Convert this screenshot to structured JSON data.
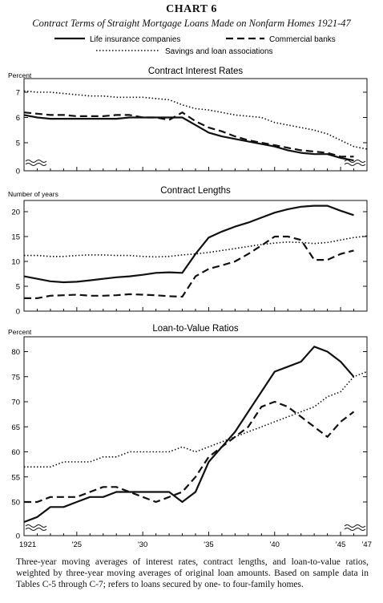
{
  "page": {
    "title": "CHART 6",
    "subtitle": "Contract Terms of Straight Mortgage Loans Made on Nonfarm Homes 1921-47",
    "caption": "Three-year moving averages of interest rates, contract lengths, and loan-to-value ratios, weighted by three-year moving averages of original loan amounts. Based on sample data in Tables C-5 through C-7; refers to loans secured by one- to four-family homes."
  },
  "legend": [
    {
      "label": "Life insurance companies",
      "style": "solid"
    },
    {
      "label": "Commercial banks",
      "style": "dashed"
    },
    {
      "label": "Savings and loan associations",
      "style": "dotted"
    }
  ],
  "chart_data": [
    {
      "type": "line",
      "title": "Contract Interest Rates",
      "ylabel": "Percent",
      "ylim": [
        0,
        7.5
      ],
      "yticks": [
        "0",
        "5",
        "6",
        "7"
      ],
      "xlim": [
        1921,
        1947
      ],
      "series": [
        {
          "name": "Life insurance companies",
          "style": "solid",
          "x": [
            1921,
            1922,
            1923,
            1924,
            1925,
            1926,
            1927,
            1928,
            1929,
            1930,
            1931,
            1932,
            1933,
            1934,
            1935,
            1936,
            1937,
            1938,
            1939,
            1940,
            1941,
            1942,
            1943,
            1944,
            1945,
            1946
          ],
          "values": [
            6.1,
            6.0,
            5.95,
            5.95,
            5.95,
            5.95,
            5.95,
            5.95,
            6.0,
            6.0,
            6.0,
            6.0,
            6.0,
            5.7,
            5.4,
            5.25,
            5.15,
            5.05,
            4.95,
            4.85,
            4.7,
            4.6,
            4.55,
            4.55,
            4.4,
            4.3
          ]
        },
        {
          "name": "Commercial banks",
          "style": "dashed",
          "x": [
            1921,
            1922,
            1923,
            1924,
            1925,
            1926,
            1927,
            1928,
            1929,
            1930,
            1931,
            1932,
            1933,
            1934,
            1935,
            1936,
            1937,
            1938,
            1939,
            1940,
            1941,
            1942,
            1943,
            1944,
            1945,
            1946
          ],
          "values": [
            6.2,
            6.15,
            6.1,
            6.1,
            6.05,
            6.05,
            6.05,
            6.1,
            6.1,
            6.0,
            6.0,
            5.9,
            6.2,
            5.85,
            5.6,
            5.45,
            5.25,
            5.1,
            5.0,
            4.9,
            4.8,
            4.7,
            4.65,
            4.6,
            4.45,
            4.45
          ]
        },
        {
          "name": "Savings and loan associations",
          "style": "dotted",
          "x": [
            1921,
            1922,
            1923,
            1924,
            1925,
            1926,
            1927,
            1928,
            1929,
            1930,
            1931,
            1932,
            1933,
            1934,
            1935,
            1936,
            1937,
            1938,
            1939,
            1940,
            1941,
            1942,
            1943,
            1944,
            1945,
            1946,
            1947
          ],
          "values": [
            7.05,
            7.0,
            7.0,
            6.95,
            6.9,
            6.85,
            6.85,
            6.8,
            6.8,
            6.8,
            6.75,
            6.7,
            6.5,
            6.35,
            6.3,
            6.2,
            6.1,
            6.05,
            6.0,
            5.8,
            5.7,
            5.6,
            5.5,
            5.35,
            5.1,
            4.85,
            4.75
          ]
        }
      ]
    },
    {
      "type": "line",
      "title": "Contract Lengths",
      "ylabel": "Number of years",
      "ylim": [
        0,
        21
      ],
      "yticks": [
        "0",
        "5",
        "10",
        "15",
        "20"
      ],
      "xlim": [
        1921,
        1947
      ],
      "series": [
        {
          "name": "Life insurance companies",
          "style": "solid",
          "x": [
            1921,
            1922,
            1923,
            1924,
            1925,
            1926,
            1927,
            1928,
            1929,
            1930,
            1931,
            1932,
            1933,
            1934,
            1935,
            1936,
            1937,
            1938,
            1939,
            1940,
            1941,
            1942,
            1943,
            1944,
            1945,
            1946
          ],
          "values": [
            7.0,
            6.5,
            6.0,
            5.8,
            5.9,
            6.2,
            6.5,
            6.8,
            7.0,
            7.3,
            7.7,
            7.8,
            7.7,
            11.5,
            14.8,
            16.0,
            17.0,
            17.8,
            18.8,
            19.8,
            20.5,
            21.0,
            21.2,
            21.2,
            20.2,
            19.3
          ]
        },
        {
          "name": "Commercial banks",
          "style": "dashed",
          "x": [
            1921,
            1922,
            1923,
            1924,
            1925,
            1926,
            1927,
            1928,
            1929,
            1930,
            1931,
            1932,
            1933,
            1934,
            1935,
            1936,
            1937,
            1938,
            1939,
            1940,
            1941,
            1942,
            1943,
            1944,
            1945,
            1946
          ],
          "values": [
            2.6,
            2.6,
            3.1,
            3.2,
            3.3,
            3.1,
            3.1,
            3.2,
            3.4,
            3.3,
            3.2,
            3.0,
            2.9,
            7.0,
            8.5,
            9.2,
            10.0,
            11.5,
            13.2,
            15.0,
            15.0,
            14.3,
            10.3,
            10.3,
            11.5,
            12.2
          ]
        },
        {
          "name": "Savings and loan associations",
          "style": "dotted",
          "x": [
            1921,
            1922,
            1923,
            1924,
            1925,
            1926,
            1927,
            1928,
            1929,
            1930,
            1931,
            1932,
            1933,
            1934,
            1935,
            1936,
            1937,
            1938,
            1939,
            1940,
            1941,
            1942,
            1943,
            1944,
            1945,
            1946,
            1947
          ],
          "values": [
            11.2,
            11.2,
            11.0,
            11.0,
            11.2,
            11.3,
            11.3,
            11.2,
            11.2,
            11.0,
            10.9,
            11.0,
            11.3,
            11.5,
            11.8,
            12.2,
            12.6,
            13.0,
            13.4,
            13.7,
            13.9,
            13.8,
            13.6,
            13.8,
            14.3,
            14.8,
            15.1
          ]
        }
      ]
    },
    {
      "type": "line",
      "title": "Loan-to-Value Ratios",
      "ylabel": "Percent",
      "ylim": [
        0,
        82
      ],
      "yticks": [
        "0",
        "50",
        "55",
        "60",
        "65",
        "70",
        "75",
        "80"
      ],
      "xticks": [
        "1921",
        "'25",
        "'30",
        "'35",
        "'40",
        "'45",
        "'47"
      ],
      "xtick_values": [
        1921,
        1925,
        1930,
        1935,
        1940,
        1945,
        1947
      ],
      "xlim": [
        1921,
        1947
      ],
      "series": [
        {
          "name": "Life insurance companies",
          "style": "solid",
          "x": [
            1921,
            1922,
            1923,
            1924,
            1925,
            1926,
            1927,
            1928,
            1929,
            1930,
            1931,
            1932,
            1933,
            1934,
            1935,
            1936,
            1937,
            1938,
            1939,
            1940,
            1941,
            1942,
            1943,
            1944,
            1945,
            1946
          ],
          "values": [
            46,
            47,
            49,
            49,
            50,
            51,
            51,
            52,
            52,
            52,
            52,
            52,
            50,
            52,
            58,
            61,
            64,
            68,
            72,
            76,
            77,
            78,
            81,
            80,
            78,
            75
          ]
        },
        {
          "name": "Commercial banks",
          "style": "dashed",
          "x": [
            1921,
            1922,
            1923,
            1924,
            1925,
            1926,
            1927,
            1928,
            1929,
            1930,
            1931,
            1932,
            1933,
            1934,
            1935,
            1936,
            1937,
            1938,
            1939,
            1940,
            1941,
            1942,
            1943,
            1944,
            1945,
            1946
          ],
          "values": [
            50,
            50,
            51,
            51,
            51,
            52,
            53,
            53,
            52,
            51,
            50,
            51,
            52,
            55,
            59,
            61,
            63,
            65,
            69,
            70,
            69,
            67,
            65,
            63,
            66,
            68
          ]
        },
        {
          "name": "Savings and loan associations",
          "style": "dotted",
          "x": [
            1921,
            1922,
            1923,
            1924,
            1925,
            1926,
            1927,
            1928,
            1929,
            1930,
            1931,
            1932,
            1933,
            1934,
            1935,
            1936,
            1937,
            1938,
            1939,
            1940,
            1941,
            1942,
            1943,
            1944,
            1945,
            1946,
            1947
          ],
          "values": [
            57,
            57,
            57,
            58,
            58,
            58,
            59,
            59,
            60,
            60,
            60,
            60,
            61,
            60,
            61,
            62,
            63,
            64,
            65,
            66,
            67,
            68,
            69,
            71,
            72,
            75,
            76
          ]
        }
      ]
    }
  ]
}
